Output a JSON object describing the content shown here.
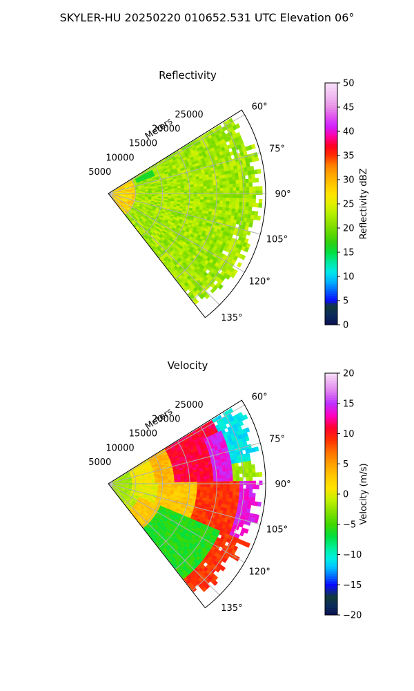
{
  "suptitle": "SKYLER-HU  20250220  010652.531 UTC Elevation 06°",
  "chart_data": [
    {
      "type": "heatmap",
      "projection": "polar-sector",
      "title": "Reflectivity",
      "radial_label": "Meters",
      "radial_ticks": [
        5000,
        10000,
        15000,
        20000,
        25000
      ],
      "angle_ticks_deg": [
        60,
        75,
        90,
        105,
        120,
        135
      ],
      "angle_tick_labels": [
        "60°",
        "75°",
        "90°",
        "105°",
        "120°",
        "135°"
      ],
      "azimuth_range_deg": [
        58,
        142
      ],
      "range_max_m": 29000,
      "grid": true,
      "colorbar": {
        "label": "Reflectivity dBZ",
        "vmin": 0,
        "vmax": 50,
        "ticks": [
          0,
          5,
          10,
          15,
          20,
          25,
          30,
          35,
          40,
          45,
          50
        ],
        "tick_labels": [
          "0",
          "5",
          "10",
          "15",
          "20",
          "25",
          "30",
          "35",
          "40",
          "45",
          "50"
        ]
      },
      "field_summary": "Mostly 20–27 dBZ (green-yellow) across sector; 27–33 dBZ (yellow-orange) near radar within ~5000 m; small 15–18 dBZ patch near 65° at ~7000 m; data extend to ~29000 m at 80–95°, ~25000 m at 60° and 135°"
    },
    {
      "type": "heatmap",
      "projection": "polar-sector",
      "title": "Velocity",
      "radial_label": "Meters",
      "radial_ticks": [
        5000,
        10000,
        15000,
        20000,
        25000
      ],
      "angle_ticks_deg": [
        60,
        75,
        90,
        105,
        120,
        135
      ],
      "angle_tick_labels": [
        "60°",
        "75°",
        "90°",
        "105°",
        "120°",
        "135°"
      ],
      "azimuth_range_deg": [
        58,
        142
      ],
      "range_max_m": 29000,
      "grid": true,
      "colorbar": {
        "label": "Velocity (m/s)",
        "vmin": -20,
        "vmax": 20,
        "ticks": [
          -20,
          -15,
          -10,
          -5,
          0,
          5,
          10,
          15,
          20
        ],
        "tick_labels": [
          "−20",
          "−15",
          "−10",
          "−5",
          "0",
          "5",
          "10",
          "15",
          "20"
        ]
      },
      "field_summary": "Near radar about -3 to 0 m/s (green-yellow); band of 8–12 m/s (red) at 12000–20000 m from 65° to 100°; 13–17 m/s (magenta) at 22000–28000 m near 70–110°; -10 to -13 m/s (cyan) beyond 22000 m at 60–85°; -5 to -8 m/s (green) at 120–135° between 10000–20000 m; 8–11 m/s at 115–125° far range"
    }
  ]
}
